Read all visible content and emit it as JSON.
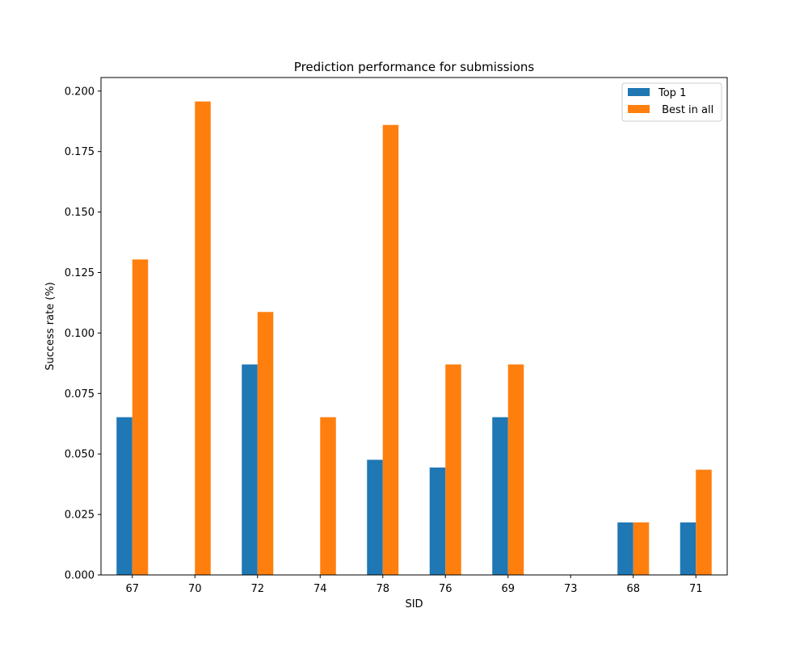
{
  "chart_data": {
    "type": "bar",
    "title": "Prediction performance for submissions",
    "xlabel": "SID",
    "ylabel": "Success rate (%)",
    "categories": [
      "67",
      "70",
      "72",
      "74",
      "78",
      "76",
      "69",
      "73",
      "68",
      "71"
    ],
    "series": [
      {
        "name": "Top 1",
        "color": "#1f77b4",
        "values": [
          0.0652,
          0,
          0.087,
          0,
          0.0476,
          0.0444,
          0.0652,
          0,
          0.0217,
          0.0217
        ]
      },
      {
        "name": " Best in all",
        "color": "#ff7f0e",
        "values": [
          0.1304,
          0.1957,
          0.1087,
          0.0652,
          0.186,
          0.087,
          0.087,
          0,
          0.0217,
          0.0435
        ]
      }
    ],
    "ylim": [
      0,
      0.2056
    ],
    "yticks": [
      "0.000",
      "0.025",
      "0.050",
      "0.075",
      "0.100",
      "0.125",
      "0.150",
      "0.175",
      "0.200"
    ],
    "legend_position": "top-right",
    "grid": false
  }
}
